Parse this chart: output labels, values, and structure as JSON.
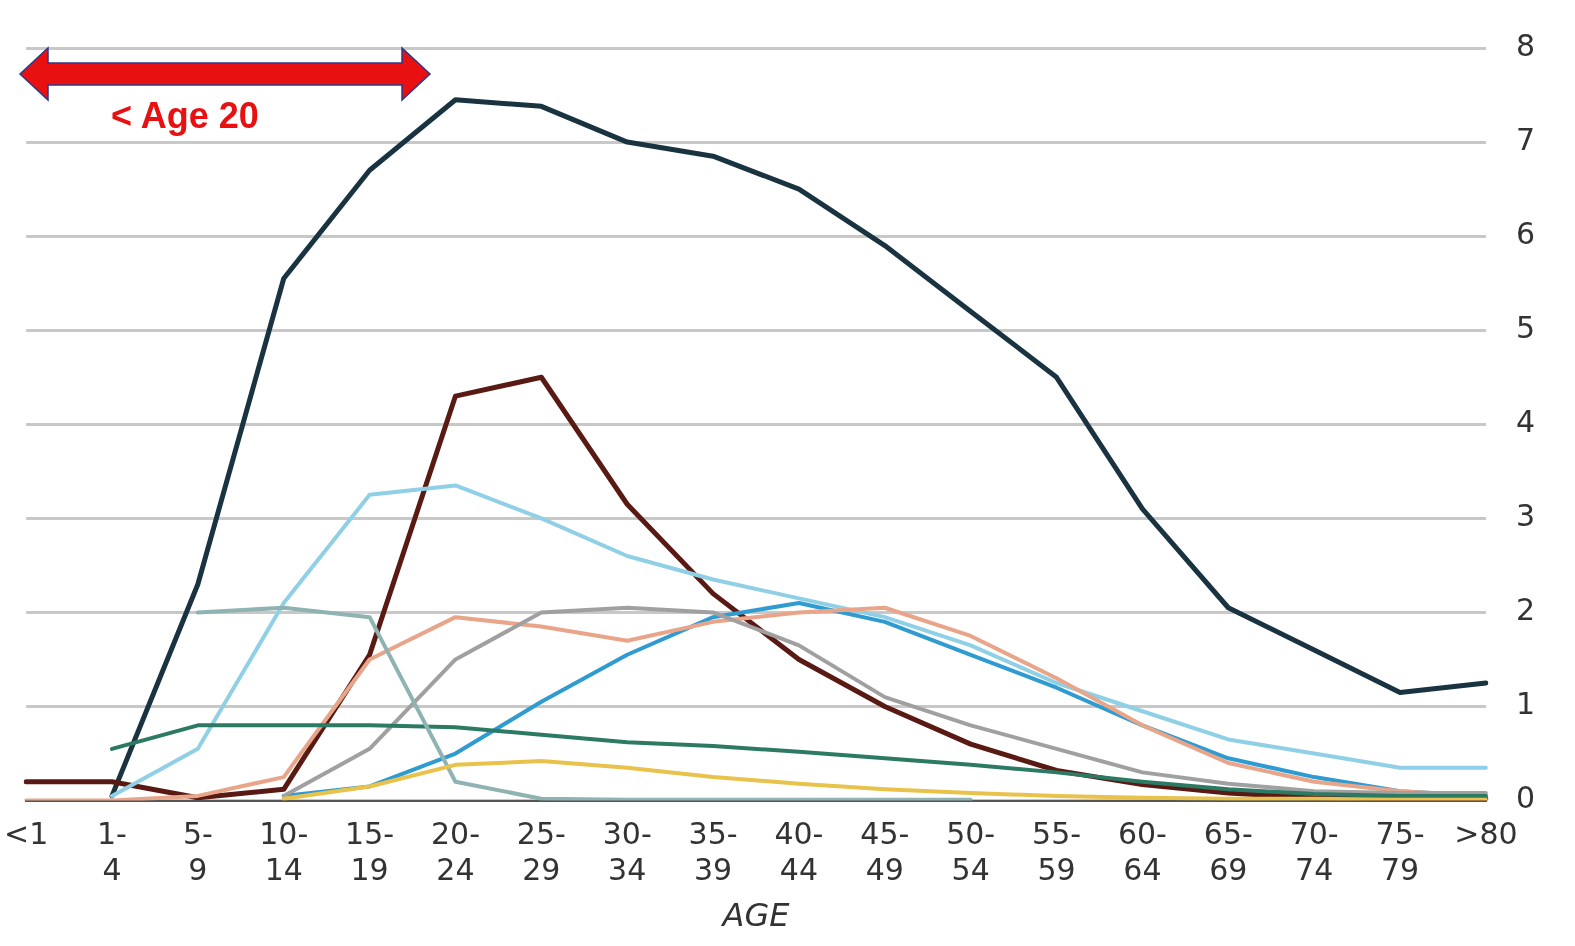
{
  "chart_data": {
    "type": "line",
    "xlabel": "AGE",
    "annotations": [
      "< Age 20"
    ],
    "categories": [
      "<1",
      "1-4",
      "5-9",
      "10-14",
      "15-19",
      "20-24",
      "25-29",
      "30-34",
      "35-39",
      "40-44",
      "45-49",
      "50-54",
      "55-59",
      "60-64",
      "65-69",
      "70-74",
      "75-79",
      ">80"
    ],
    "ylim": [
      0,
      8
    ],
    "yticks": [
      0,
      1,
      2,
      3,
      4,
      5,
      6,
      7,
      8
    ],
    "grid": "y",
    "legend": false,
    "marker": "none",
    "line_style": "solid",
    "series": [
      {
        "color": "#e8c24a",
        "values": [
          null,
          null,
          null,
          0.02,
          0.15,
          0.38,
          0.42,
          0.35,
          0.25,
          0.18,
          0.12,
          0.08,
          0.05,
          0.03,
          0.02,
          0.02,
          0.01,
          0.01
        ]
      },
      {
        "color": "#8fb3b3",
        "values": [
          null,
          null,
          2.0,
          2.05,
          1.95,
          0.2,
          0.02,
          0.01,
          0.01,
          0.01,
          0.01,
          0.01,
          null,
          null,
          null,
          null,
          null,
          null
        ]
      },
      {
        "color": "#2d7a64",
        "values": [
          null,
          0.55,
          0.8,
          0.8,
          0.8,
          0.78,
          0.7,
          0.62,
          0.58,
          0.52,
          0.45,
          0.38,
          0.3,
          0.2,
          0.12,
          0.07,
          0.05,
          0.05
        ]
      },
      {
        "color": "#a0a0a0",
        "values": [
          null,
          null,
          null,
          0.05,
          0.55,
          1.5,
          2.0,
          2.05,
          2.0,
          1.65,
          1.1,
          0.8,
          0.55,
          0.3,
          0.18,
          0.1,
          0.08,
          0.08
        ]
      },
      {
        "color": "#e8a58a",
        "values": [
          0,
          0,
          0.05,
          0.25,
          1.5,
          1.95,
          1.85,
          1.7,
          1.9,
          2.0,
          2.05,
          1.75,
          1.3,
          0.8,
          0.4,
          0.2,
          0.1,
          0.05
        ]
      },
      {
        "color": "#2f9bd0",
        "values": [
          null,
          null,
          null,
          0.05,
          0.15,
          0.5,
          1.05,
          1.55,
          1.95,
          2.1,
          1.9,
          1.55,
          1.2,
          0.8,
          0.45,
          0.25,
          0.1,
          0.05
        ]
      },
      {
        "color": "#8fd0e6",
        "values": [
          null,
          0.05,
          0.55,
          2.1,
          3.25,
          3.35,
          3.0,
          2.6,
          2.35,
          2.15,
          1.95,
          1.65,
          1.25,
          0.95,
          0.65,
          0.5,
          0.35,
          0.35
        ]
      },
      {
        "color": "#5a1a14",
        "values": [
          0.2,
          0.2,
          0.03,
          0.12,
          1.55,
          4.3,
          4.5,
          3.15,
          2.2,
          1.5,
          1.0,
          0.6,
          0.32,
          0.17,
          0.08,
          0.03,
          0.02,
          0.02
        ]
      },
      {
        "color": "#1a3340",
        "values": [
          null,
          0.05,
          2.3,
          5.55,
          6.7,
          7.45,
          7.38,
          7.0,
          6.85,
          6.5,
          5.9,
          5.2,
          4.5,
          3.1,
          2.05,
          1.6,
          1.15,
          1.25
        ]
      }
    ]
  }
}
